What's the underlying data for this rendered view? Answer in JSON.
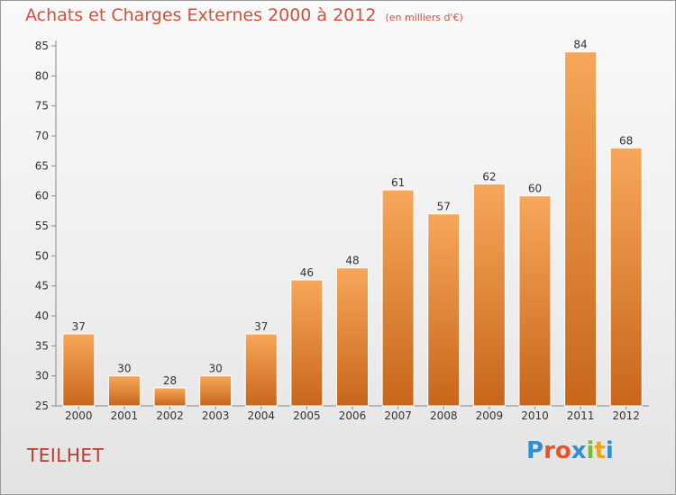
{
  "chart_data": {
    "type": "bar",
    "title": "Achats et Charges Externes 2000 à 2012",
    "subtitle": "(en milliers d'€)",
    "xlabel": "",
    "ylabel": "",
    "categories": [
      "2000",
      "2001",
      "2002",
      "2003",
      "2004",
      "2005",
      "2006",
      "2007",
      "2008",
      "2009",
      "2010",
      "2011",
      "2012"
    ],
    "values": [
      37,
      30,
      28,
      30,
      37,
      46,
      48,
      61,
      57,
      62,
      60,
      84,
      68
    ],
    "ylim": [
      25,
      85
    ],
    "yticks": [
      25,
      30,
      35,
      40,
      45,
      50,
      55,
      60,
      65,
      70,
      75,
      80,
      85
    ],
    "grid": false,
    "colors": {
      "bar_top": "#f7a75a",
      "bar_bottom": "#c8661a",
      "axis": "#888888",
      "text": "#333333"
    }
  },
  "footer": {
    "commune": "TEILHET",
    "logo": "Proxiti",
    "logo_colors": [
      "#2f8fd0",
      "#e8522c",
      "#e8522c",
      "#2f8fd0",
      "#7cb82f",
      "#f0a020",
      "#2f8fd0"
    ]
  }
}
